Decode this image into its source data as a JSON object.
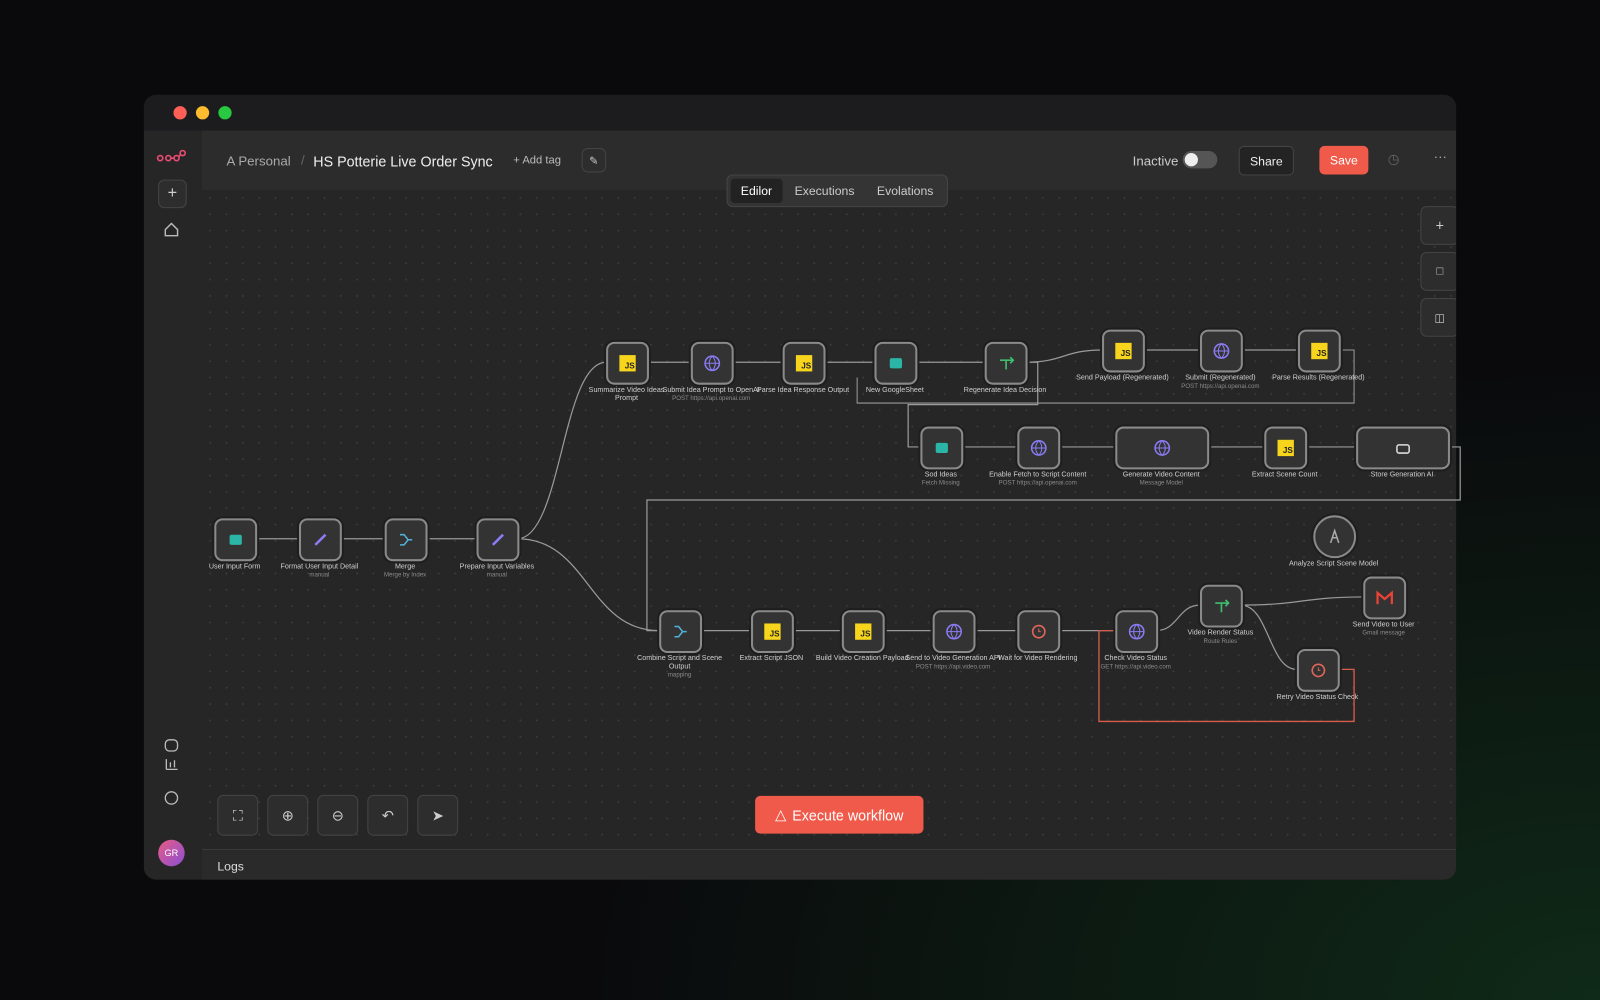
{
  "header": {
    "owner": "A Personal",
    "workflow_name": "HS Potterie Live Order Sync",
    "add_tag": "+ Add tag",
    "status": "Inactive",
    "share": "Share",
    "save": "Save"
  },
  "tabs": [
    "Edilor",
    "Executions",
    "Evolations"
  ],
  "js_badge": "JS",
  "nodes": [
    {
      "label": "Summarize Video Ideas Prompt"
    },
    {
      "label": "Submit Idea Prompt to OpenAI",
      "sublabel": "POST https://api.openai.com"
    },
    {
      "label": "Parse Idea Response Output"
    },
    {
      "label": "New GoogleSheet"
    },
    {
      "label": "Regenerate Idea Decision"
    },
    {
      "label": "Send Payload (Regenerated)"
    },
    {
      "label": "Submit (Regenerated)",
      "sublabel": "POST https://api.openai.com"
    },
    {
      "label": "Parse Results (Regenerated)"
    },
    {
      "label": "Sod Ideas",
      "sublabel": "Fetch Missing"
    },
    {
      "label": "Enable Fetch to Script Content",
      "sublabel": "POST https://api.openai.com"
    },
    {
      "label": "Generate Video Content",
      "sublabel": "Message Model"
    },
    {
      "label": "Extract Scene Count"
    },
    {
      "label": "Store Generation AI"
    },
    {
      "label": "User Input Form"
    },
    {
      "label": "Format User Input Detail",
      "sublabel": "manual"
    },
    {
      "label": "Merge",
      "sublabel": "Merge by Index"
    },
    {
      "label": "Prepare Input Variables",
      "sublabel": "manual"
    },
    {
      "label": "Analyze Script Scene Model"
    },
    {
      "label": "Combine Script and Scene Output",
      "sublabel": "mapping"
    },
    {
      "label": "Extract Script JSON"
    },
    {
      "label": "Build Video Creation Payload"
    },
    {
      "label": "Send to Video Generation API",
      "sublabel": "POST https://api.video.com"
    },
    {
      "label": "Wait for Video Rendering"
    },
    {
      "label": "Check Video Status",
      "sublabel": "GET https://api.video.com"
    },
    {
      "label": "Video Render Status",
      "sublabel": "Route Rules"
    },
    {
      "label": "Send Video to User",
      "sublabel": "Gmail message"
    },
    {
      "label": "Retry Video Status Check"
    }
  ],
  "execute": "Execute workflow",
  "logs": "Logs",
  "avatar": "GR"
}
